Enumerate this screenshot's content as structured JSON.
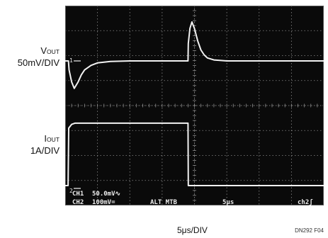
{
  "labels": {
    "vout_main": "V",
    "vout_sub": "OUT",
    "vout_scale": "50mV/DIV",
    "iout_main": "I",
    "iout_sub": "OUT",
    "iout_scale": "1A/DIV",
    "time_scale": "5μs/DIV",
    "figure_id": "DN292 F04"
  },
  "readout": {
    "ch1": "CH1",
    "ch1_scale": "50.0mV∿",
    "ch2": "CH2",
    "ch2_scale": "100mV=",
    "alt_mtb": "ALT MTB",
    "timebase": "5μs",
    "trigger": "ch2ʃ"
  },
  "markers": {
    "ch1": "1",
    "ch2": "2"
  },
  "colors": {
    "screen": "#0a0a0a",
    "grid": "#8a8a8a",
    "trace": "#f2f2f2",
    "page": "#ffffff"
  },
  "chart_data": {
    "type": "line",
    "grid": true,
    "x_divisions": 8,
    "y_divisions": 8,
    "x_unit": "μs",
    "x_range": [
      0,
      40
    ],
    "series": [
      {
        "name": "VOUT",
        "y_unit": "mV",
        "x": [
          0,
          0.5,
          0.6,
          1.0,
          1.4,
          2.0,
          2.5,
          3.0,
          4.0,
          5.0,
          7.0,
          10.0,
          14.0,
          19.0,
          19.05,
          19.3,
          19.6,
          20.0,
          20.5,
          21.0,
          21.5,
          22.0,
          23.0,
          25.0,
          28.0,
          32.0,
          40.0
        ],
        "y": [
          0,
          0,
          -18,
          -42,
          -55,
          -42,
          -28,
          -18,
          -9,
          -4,
          -1,
          0,
          0,
          0,
          35,
          65,
          78,
          65,
          40,
          22,
          12,
          6,
          2,
          0,
          0,
          0,
          0
        ]
      },
      {
        "name": "IOUT",
        "y_unit": "A",
        "x": [
          0,
          0.45,
          0.55,
          1.0,
          1.5,
          3.0,
          19.0,
          19.05,
          40.0
        ],
        "y": [
          0,
          0,
          2.3,
          2.45,
          2.5,
          2.5,
          2.5,
          0,
          0
        ]
      }
    ]
  }
}
